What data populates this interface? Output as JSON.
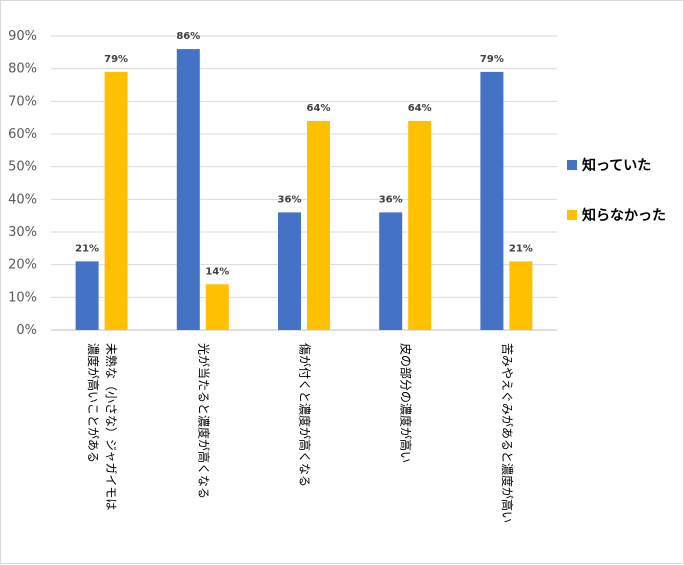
{
  "chart_data": {
    "type": "bar",
    "categories": [
      [
        "未熟な（小さな）ジャガイモは",
        "濃度が高いことがある"
      ],
      [
        "光が当たると濃度が高くなる"
      ],
      [
        "傷が付くと濃度が高くなる"
      ],
      [
        "皮の部分の濃度が高い"
      ],
      [
        "苦みやえぐみがあると濃度が高い"
      ]
    ],
    "series": [
      {
        "name": "知っていた",
        "values": [
          21,
          86,
          36,
          36,
          79
        ],
        "color": "#4472C4"
      },
      {
        "name": "知らなかった",
        "values": [
          79,
          14,
          64,
          64,
          21
        ],
        "color": "#FFC000"
      }
    ],
    "ylim": [
      0,
      90
    ],
    "yticks": [
      0,
      10,
      20,
      30,
      40,
      50,
      60,
      70,
      80,
      90
    ],
    "tick_suffix": "%",
    "label_suffix": "%",
    "grid": true,
    "legend_position": "right",
    "title": "",
    "xlabel": "",
    "ylabel": ""
  }
}
